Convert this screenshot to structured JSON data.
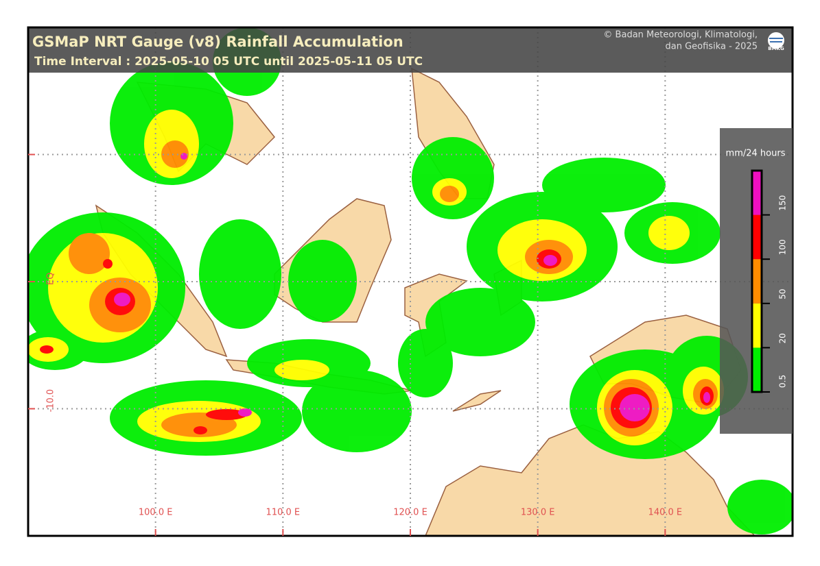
{
  "header": {
    "title": "GSMaP NRT Gauge (v8) Rainfall Accumulation",
    "subtitle": "Time Interval : 2025-05-10 05 UTC until 2025-05-11 05 UTC",
    "credit_line1": "© Badan Meteorologi, Klimatologi,",
    "credit_line2": "dan Geofisika -  2025",
    "logo_text": "BMKG"
  },
  "map": {
    "lon_range": [
      90,
      150
    ],
    "lat_range": [
      -20,
      20
    ],
    "lon_ticks": [
      {
        "value": 100,
        "label": "100.0 E"
      },
      {
        "value": 110,
        "label": "110.0 E"
      },
      {
        "value": 120,
        "label": "120.0 E"
      },
      {
        "value": 130,
        "label": "130.0 E"
      },
      {
        "value": 140,
        "label": "140.0 E"
      }
    ],
    "lat_ticks": [
      {
        "value": 10,
        "label": null
      },
      {
        "value": 0,
        "label": "EQ"
      },
      {
        "value": -10,
        "label": "-10.0"
      }
    ],
    "grid": true
  },
  "legend": {
    "title": "mm/24 hours",
    "ticks": [
      0.5,
      20,
      50,
      100,
      150
    ],
    "colors": [
      "#00ee00",
      "#ffff00",
      "#ff8c00",
      "#ff0000",
      "#ee10c0"
    ]
  }
}
